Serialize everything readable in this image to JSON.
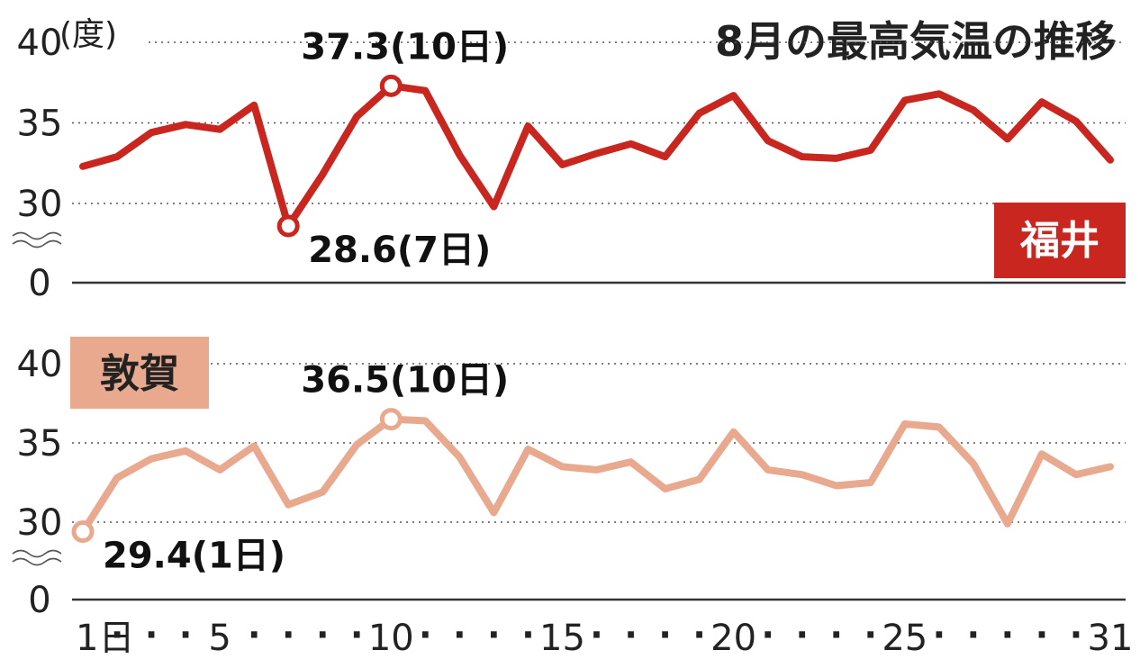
{
  "chart_data": {
    "type": "line",
    "title": "8月の最高気温の推移",
    "unit_label": "(度)",
    "x": [
      1,
      2,
      3,
      4,
      5,
      6,
      7,
      8,
      9,
      10,
      11,
      12,
      13,
      14,
      15,
      16,
      17,
      18,
      19,
      20,
      21,
      22,
      23,
      24,
      25,
      26,
      27,
      28,
      29,
      30,
      31
    ],
    "x_tick_labels": [
      "1日",
      "5",
      "10",
      "15",
      "20",
      "25",
      "31"
    ],
    "x_tick_values": [
      1,
      5,
      10,
      15,
      20,
      25,
      31
    ],
    "y_tick_labels": [
      "40",
      "35",
      "30",
      "0"
    ],
    "y_tick_values": [
      40,
      35,
      30,
      0
    ],
    "y_axis_break": true,
    "grid": "dotted horizontal",
    "panels": [
      {
        "name": "福井",
        "color": "#c8261e",
        "ylim": [
          30,
          40
        ],
        "values": [
          32.3,
          32.9,
          34.4,
          34.9,
          34.6,
          36.1,
          28.6,
          31.8,
          35.4,
          37.3,
          37.0,
          33.0,
          29.8,
          34.8,
          32.4,
          33.1,
          33.7,
          32.9,
          35.6,
          36.7,
          33.9,
          32.9,
          32.8,
          33.3,
          36.4,
          36.8,
          35.8,
          34.0,
          36.3,
          35.1,
          32.7
        ],
        "annotations": [
          {
            "text": "37.3(10日)",
            "x": 10,
            "y": 37.3
          },
          {
            "text": "28.6(7日)",
            "x": 7,
            "y": 28.6
          }
        ]
      },
      {
        "name": "敦賀",
        "color": "#e8a98f",
        "ylim": [
          30,
          40
        ],
        "values": [
          29.4,
          32.8,
          34.0,
          34.5,
          33.3,
          34.8,
          31.1,
          31.9,
          34.9,
          36.5,
          36.4,
          34.1,
          30.6,
          34.6,
          33.5,
          33.3,
          33.8,
          32.1,
          32.7,
          35.7,
          33.3,
          33.0,
          32.3,
          32.5,
          36.2,
          36.0,
          33.7,
          29.9,
          34.3,
          33.0,
          33.5
        ],
        "annotations": [
          {
            "text": "36.5(10日)",
            "x": 10,
            "y": 36.5
          },
          {
            "text": "29.4(1日)",
            "x": 1,
            "y": 29.4
          }
        ]
      }
    ]
  }
}
